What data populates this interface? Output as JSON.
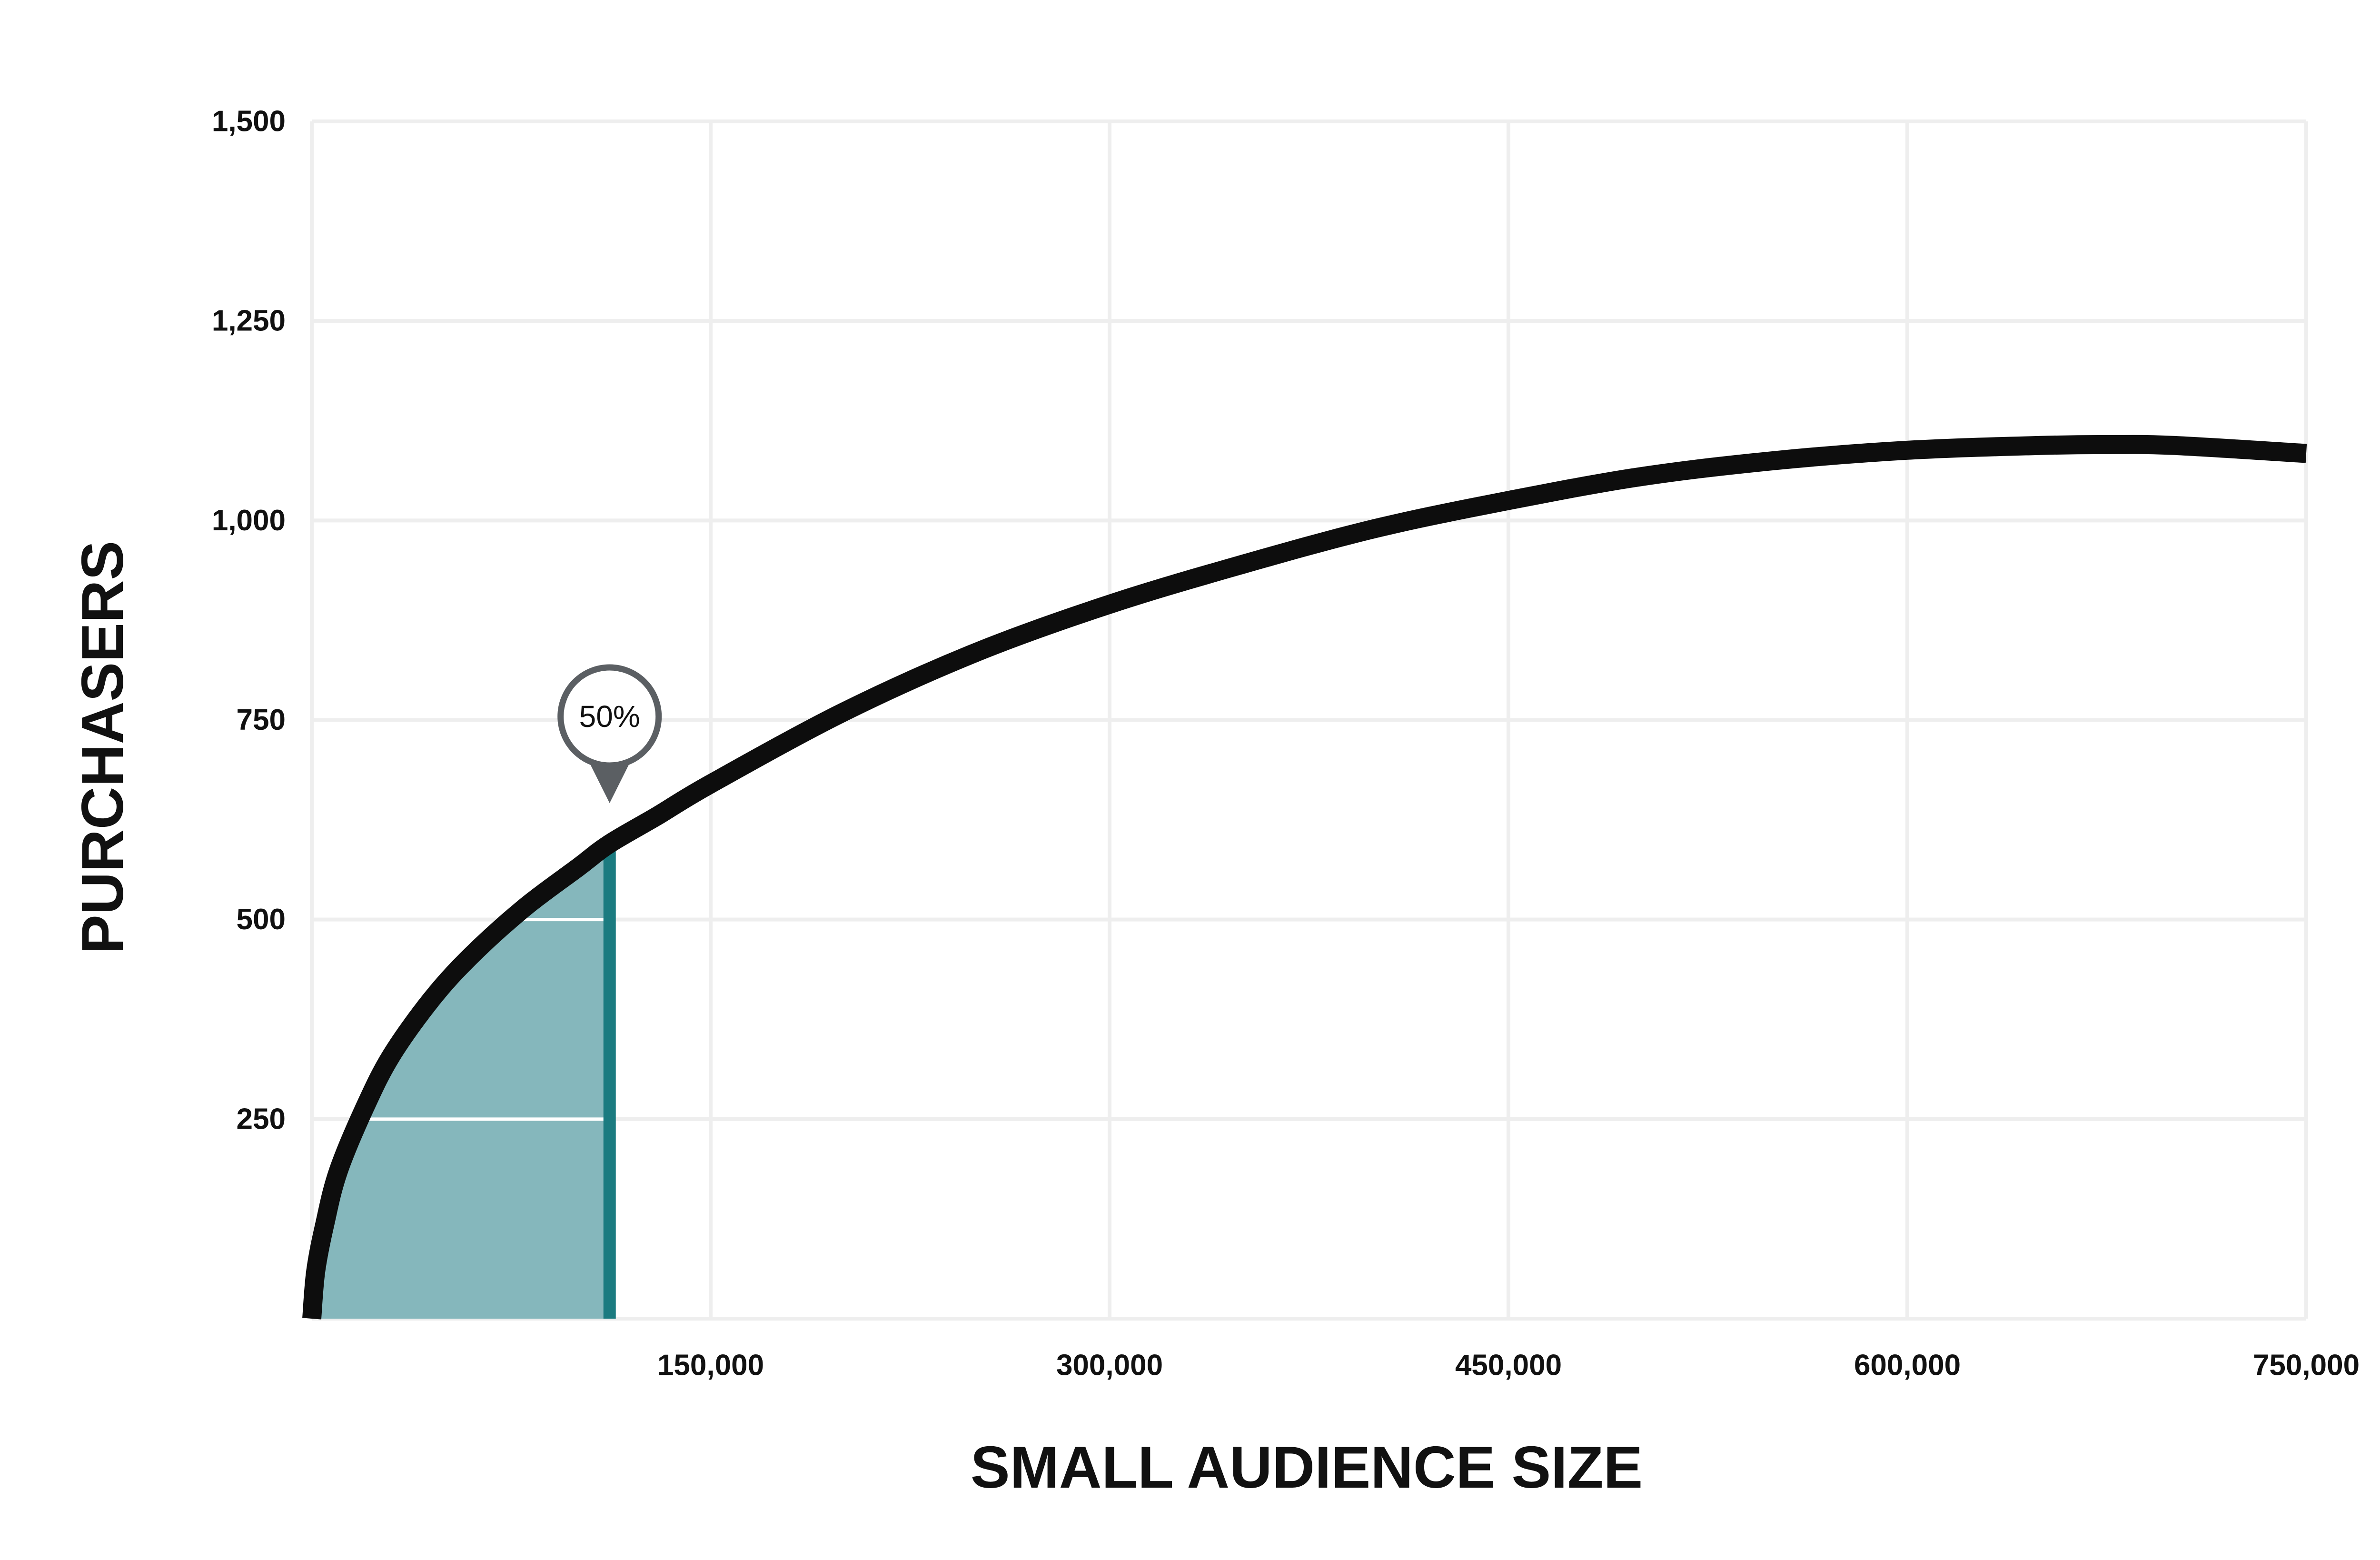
{
  "chart_data": {
    "type": "area",
    "xlabel": "SMALL AUDIENCE SIZE",
    "ylabel": "PURCHASERS",
    "xlim": [
      0,
      750000
    ],
    "ylim": [
      0,
      1500
    ],
    "x_ticks": [
      {
        "value": 150000,
        "label": "150,000"
      },
      {
        "value": 300000,
        "label": "300,000"
      },
      {
        "value": 450000,
        "label": "450,000"
      },
      {
        "value": 600000,
        "label": "600,000"
      },
      {
        "value": 750000,
        "label": "750,000"
      }
    ],
    "y_ticks": [
      {
        "value": 250,
        "label": "250"
      },
      {
        "value": 500,
        "label": "500"
      },
      {
        "value": 750,
        "label": "750"
      },
      {
        "value": 1000,
        "label": "1,000"
      },
      {
        "value": 1250,
        "label": "1,250"
      },
      {
        "value": 1500,
        "label": "1,500"
      }
    ],
    "grid": true,
    "series": [
      {
        "x": [
          0,
          1500,
          5000,
          10000,
          20000,
          30000,
          45000,
          60000,
          80000,
          100000,
          112000,
          130000,
          150000,
          200000,
          250000,
          300000,
          350000,
          400000,
          450000,
          500000,
          550000,
          600000,
          650000,
          675000,
          700000,
          750000
        ],
        "y": [
          0,
          60,
          120,
          185,
          265,
          330,
          400,
          455,
          515,
          565,
          595,
          630,
          670,
          760,
          835,
          895,
          945,
          990,
          1025,
          1055,
          1075,
          1088,
          1094,
          1095,
          1094,
          1084
        ]
      }
    ],
    "shaded_region": {
      "x_start": 0,
      "x_end": 112000
    },
    "marker": {
      "x": 112000,
      "y": 595,
      "label": "50%"
    },
    "colors": {
      "curve": "#0d0d0d",
      "fill": "#85b7bc",
      "marker_line": "#1b7b80",
      "grid": "#eeeeee",
      "marker_border": "#5b5f63"
    }
  }
}
